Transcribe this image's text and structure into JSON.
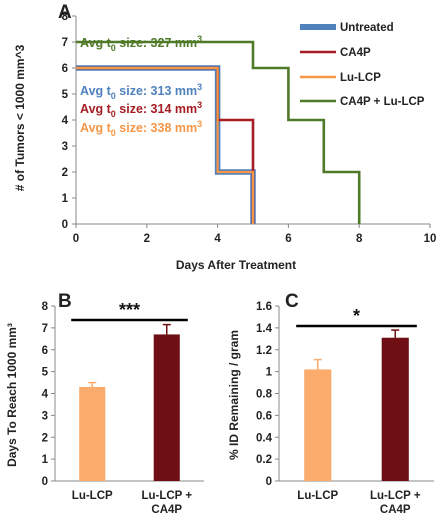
{
  "chart_data": [
    {
      "panel": "A",
      "type": "line",
      "step": true,
      "xlabel": "Days After Treatment",
      "ylabel": "# of Tumors < 1000 mm^3",
      "xlim": [
        0,
        10
      ],
      "ylim": [
        0,
        8
      ],
      "xticks": [
        0,
        2,
        4,
        6,
        8,
        10
      ],
      "yticks": [
        0,
        1,
        2,
        3,
        4,
        5,
        6,
        7,
        8
      ],
      "legend_position": "top-right",
      "series": [
        {
          "name": "Untreated",
          "color": "#4f81bd",
          "x": [
            0,
            4,
            5,
            5
          ],
          "y": [
            6,
            2,
            2,
            0
          ]
        },
        {
          "name": "CA4P",
          "color": "#a51d23",
          "x": [
            0,
            4,
            5,
            5
          ],
          "y": [
            6,
            4,
            4,
            0
          ]
        },
        {
          "name": "Lu-LCP",
          "color": "#f79646",
          "x": [
            0,
            4,
            5,
            5
          ],
          "y": [
            6,
            2,
            2,
            0
          ]
        },
        {
          "name": "CA4P + Lu-LCP",
          "color": "#4f7a28",
          "x": [
            0,
            5,
            6,
            7,
            8,
            8
          ],
          "y": [
            7,
            6,
            4,
            2,
            0,
            0
          ]
        }
      ],
      "annotations": [
        {
          "base": "Avg t",
          "sub": "0",
          "rest": " size: 327 mm",
          "sup": "3",
          "color": "#4f7a28"
        },
        {
          "base": "Avg t",
          "sub": "0",
          "rest": " size: 313 mm",
          "sup": "3",
          "color": "#4f81bd"
        },
        {
          "base": "Avg t",
          "sub": "0",
          "rest": " size: 314 mm",
          "sup": "3",
          "color": "#a51d23"
        },
        {
          "base": "Avg t",
          "sub": "0",
          "rest": " size: 338 mm",
          "sup": "3",
          "color": "#f79646"
        }
      ]
    },
    {
      "panel": "B",
      "type": "bar",
      "categories": [
        "Lu-LCP",
        "Lu-LCP + CA4P"
      ],
      "category_lines": [
        [
          "Lu-LCP"
        ],
        [
          "Lu-LCP +",
          "CA4P"
        ]
      ],
      "values": [
        4.3,
        6.7
      ],
      "errors": [
        0.2,
        0.45
      ],
      "colors": [
        "#fbab6b",
        "#6d0f13"
      ],
      "ylabel": "Days To Reach 1000 mm³",
      "ylim": [
        0,
        8
      ],
      "yticks": [
        0,
        1,
        2,
        3,
        4,
        5,
        6,
        7,
        8
      ],
      "significance": "***"
    },
    {
      "panel": "C",
      "type": "bar",
      "categories": [
        "Lu-LCP",
        "Lu-LCP + CA4P"
      ],
      "category_lines": [
        [
          "Lu-LCP"
        ],
        [
          "Lu-LCP +",
          "CA4P"
        ]
      ],
      "values": [
        1.02,
        1.31
      ],
      "errors": [
        0.09,
        0.07
      ],
      "colors": [
        "#fbab6b",
        "#6d0f13"
      ],
      "ylabel": "% ID Remaining / gram",
      "ylim": [
        0,
        1.6
      ],
      "yticks": [
        0,
        0.2,
        0.4,
        0.6,
        0.8,
        1,
        1.2,
        1.4,
        1.6
      ],
      "significance": "*"
    }
  ]
}
